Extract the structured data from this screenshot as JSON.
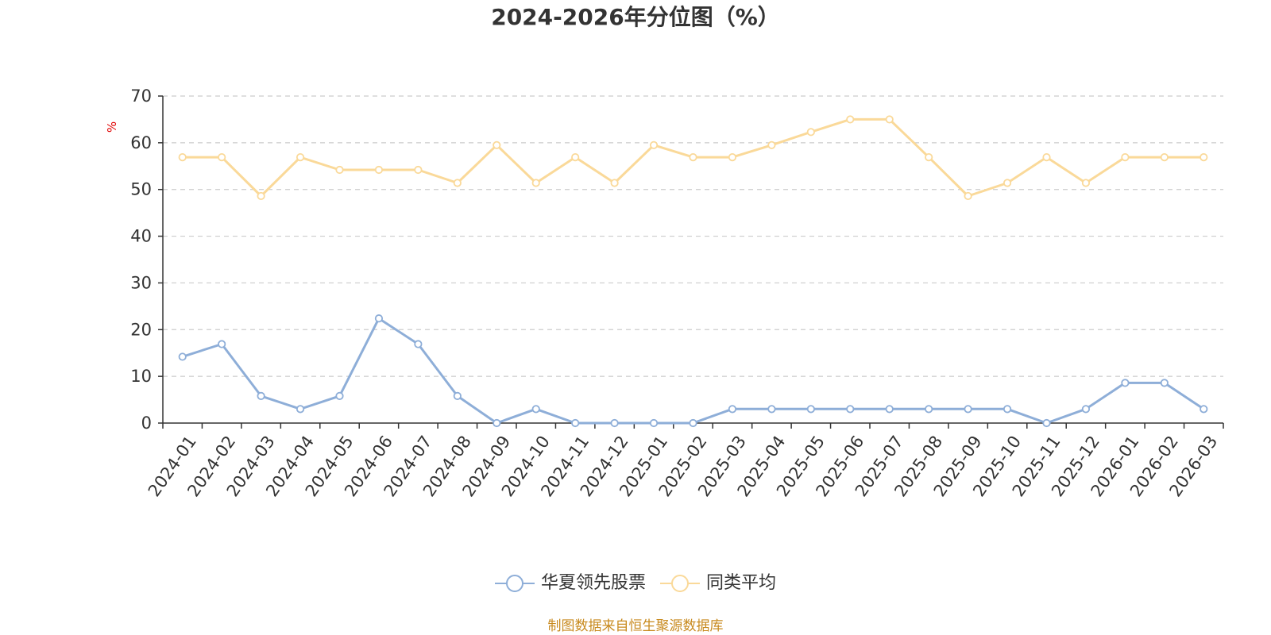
{
  "title": "2024-2026年分位图（%）",
  "source_note": "制图数据来自恒生聚源数据库",
  "chart_data": {
    "type": "line",
    "title": "2024-2026年分位图（%）",
    "xlabel": "",
    "ylabel": "%",
    "ylim": [
      0,
      70
    ],
    "yticks": [
      0,
      10,
      20,
      30,
      40,
      50,
      60,
      70
    ],
    "grid": true,
    "legend_position": "bottom-center",
    "categories": [
      "2024-01",
      "2024-02",
      "2024-03",
      "2024-04",
      "2024-05",
      "2024-06",
      "2024-07",
      "2024-08",
      "2024-09",
      "2024-10",
      "2024-11",
      "2024-12",
      "2025-01",
      "2025-02",
      "2025-03",
      "2025-04",
      "2025-05",
      "2025-06",
      "2025-07",
      "2025-08",
      "2025-09",
      "2025-10",
      "2025-11",
      "2025-12",
      "2026-01",
      "2026-02",
      "2026-03"
    ],
    "series": [
      {
        "name": "华夏领先股票",
        "color": "#8eaed8",
        "values": [
          14.2,
          16.9,
          5.8,
          3.0,
          5.8,
          22.4,
          16.9,
          5.8,
          0,
          3.0,
          0,
          0,
          0,
          0,
          3.0,
          3.0,
          3.0,
          3.0,
          3.0,
          3.0,
          3.0,
          3.0,
          0,
          3.0,
          8.6,
          8.6,
          3.0
        ]
      },
      {
        "name": "同类平均",
        "color": "#fad999",
        "values": [
          56.9,
          56.9,
          48.6,
          56.9,
          54.2,
          54.2,
          54.2,
          51.4,
          59.5,
          51.4,
          56.9,
          51.4,
          59.5,
          56.9,
          56.9,
          59.5,
          62.3,
          65.0,
          65.0,
          56.9,
          48.6,
          51.4,
          56.9,
          51.4,
          56.9,
          56.9,
          56.9
        ]
      }
    ]
  }
}
